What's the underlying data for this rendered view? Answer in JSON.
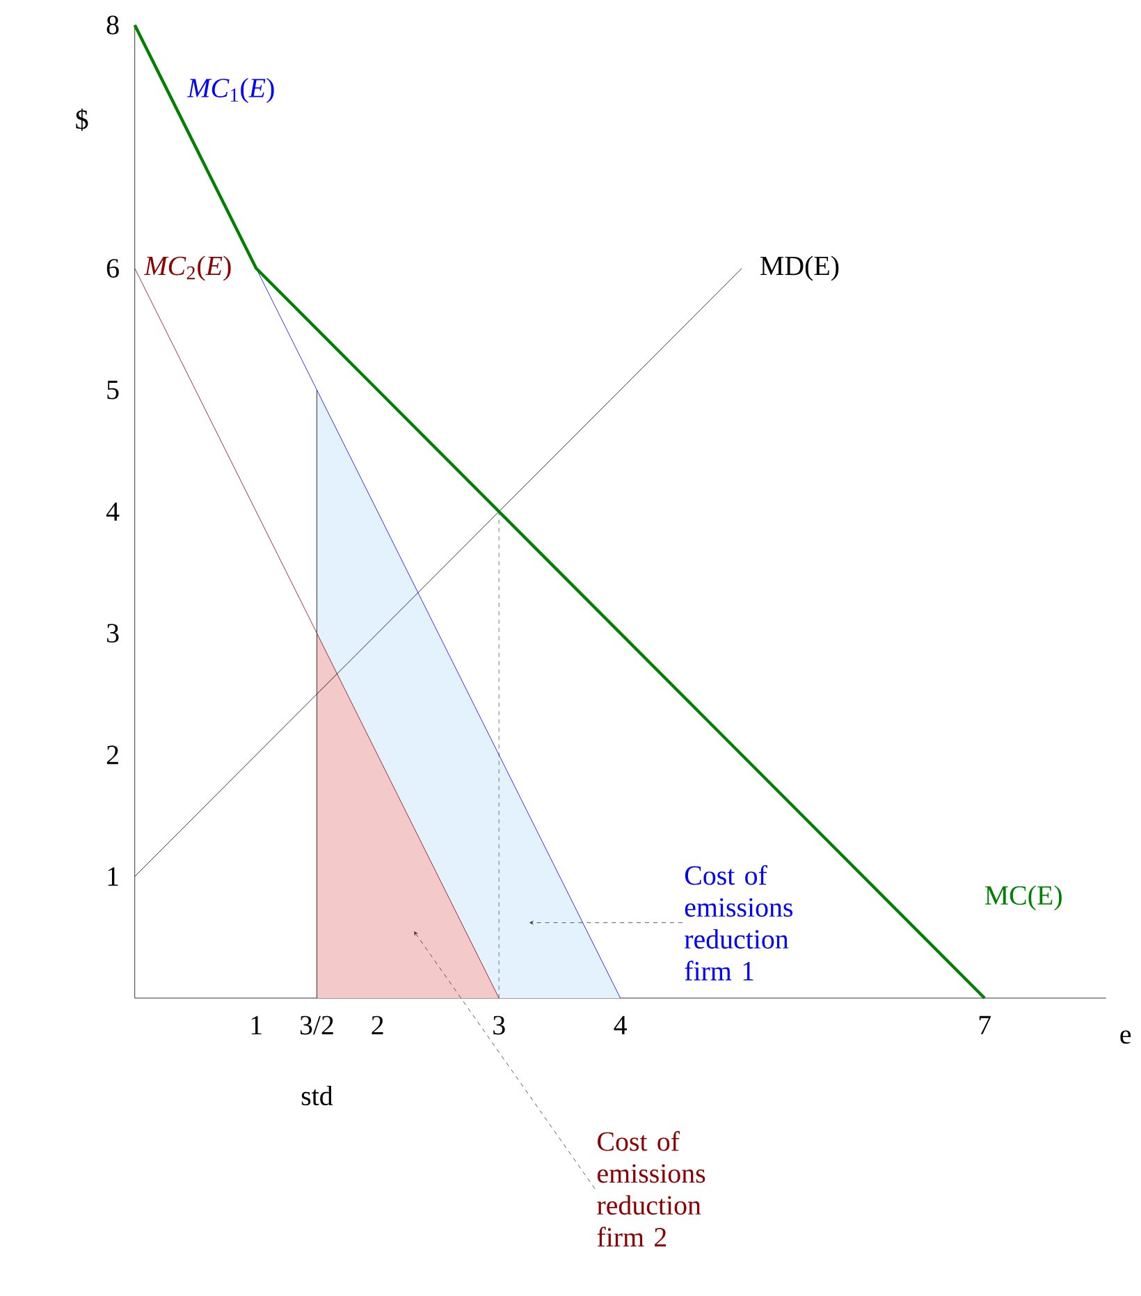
{
  "chart_data": {
    "type": "line",
    "xlabel": "e",
    "ylabel": "$",
    "xlim": [
      0,
      8
    ],
    "ylim": [
      0,
      8
    ],
    "xticks": [
      1,
      {
        "value": 1.5,
        "label": "3/2"
      },
      2,
      3,
      4,
      7
    ],
    "yticks": [
      1,
      2,
      3,
      4,
      5,
      6,
      8
    ],
    "grid": false,
    "series": [
      {
        "type": "area",
        "color": "#e3f2fc",
        "x": [
          1.5,
          4
        ],
        "values": [
          5,
          0
        ]
      },
      {
        "type": "area",
        "color": "#f4c9c9",
        "x": [
          1.5,
          3
        ],
        "values": [
          3,
          0
        ]
      },
      {
        "color": "#000000",
        "x": [
          1.5,
          1.5
        ],
        "values": [
          0,
          5
        ]
      },
      {
        "color": "#555555",
        "line_style": "dashed",
        "x": [
          3,
          3
        ],
        "values": [
          0,
          4
        ]
      },
      {
        "name": "*MC*$_{2}$(*E*)",
        "color": "#8b0000",
        "x": [
          0,
          3
        ],
        "values": [
          6,
          0
        ]
      },
      {
        "name": "*MC*$_{1}$(*E*)",
        "color": "#0000ff",
        "x": [
          0,
          4
        ],
        "values": [
          8,
          0
        ]
      },
      {
        "name": "MD(E)",
        "color": "#000000",
        "x": [
          0,
          5
        ],
        "values": [
          1,
          6
        ]
      },
      {
        "name": "MC(E)",
        "color": "#008000",
        "x": [
          0,
          1,
          7
        ],
        "values": [
          8,
          6,
          0
        ]
      }
    ],
    "annotations": [
      "std",
      {
        "text": "Cost of emissions reduction firm 1",
        "x": 3.25,
        "y": 0.62
      },
      {
        "text": "Cost of emissions reduction firm 2",
        "x": 2.3,
        "y": 0.55
      }
    ]
  }
}
